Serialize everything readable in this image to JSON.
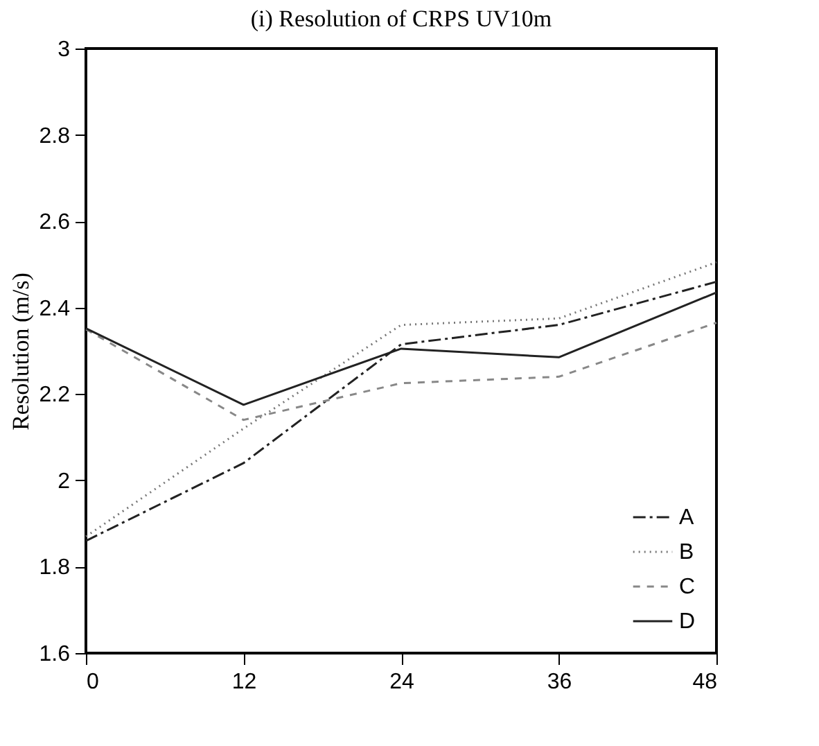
{
  "chart_data": {
    "type": "line",
    "title": "(i)   Resolution of CRPS UV10m",
    "ylabel": "Resolution (m/s)",
    "x": [
      0,
      12,
      24,
      36,
      48
    ],
    "series": [
      {
        "name": "A",
        "color": "#222222",
        "line_style": "dashdot",
        "values": [
          1.86,
          2.04,
          2.315,
          2.36,
          2.46
        ]
      },
      {
        "name": "B",
        "color": "#777777",
        "line_style": "dotted",
        "values": [
          1.87,
          2.12,
          2.36,
          2.375,
          2.505
        ]
      },
      {
        "name": "C",
        "color": "#888888",
        "line_style": "dashed",
        "values": [
          2.35,
          2.14,
          2.225,
          2.24,
          2.365
        ]
      },
      {
        "name": "D",
        "color": "#222222",
        "line_style": "solid",
        "values": [
          2.352,
          2.175,
          2.305,
          2.285,
          2.435
        ]
      }
    ],
    "xlim": [
      0,
      48
    ],
    "xticks": [
      0,
      12,
      24,
      36,
      48
    ],
    "ylim": [
      1.6,
      3
    ],
    "yticks": [
      1.6,
      1.8,
      2,
      2.2,
      2.4,
      2.6,
      2.8,
      3
    ],
    "grid": false,
    "legend": "bottom right",
    "marker": "none"
  }
}
